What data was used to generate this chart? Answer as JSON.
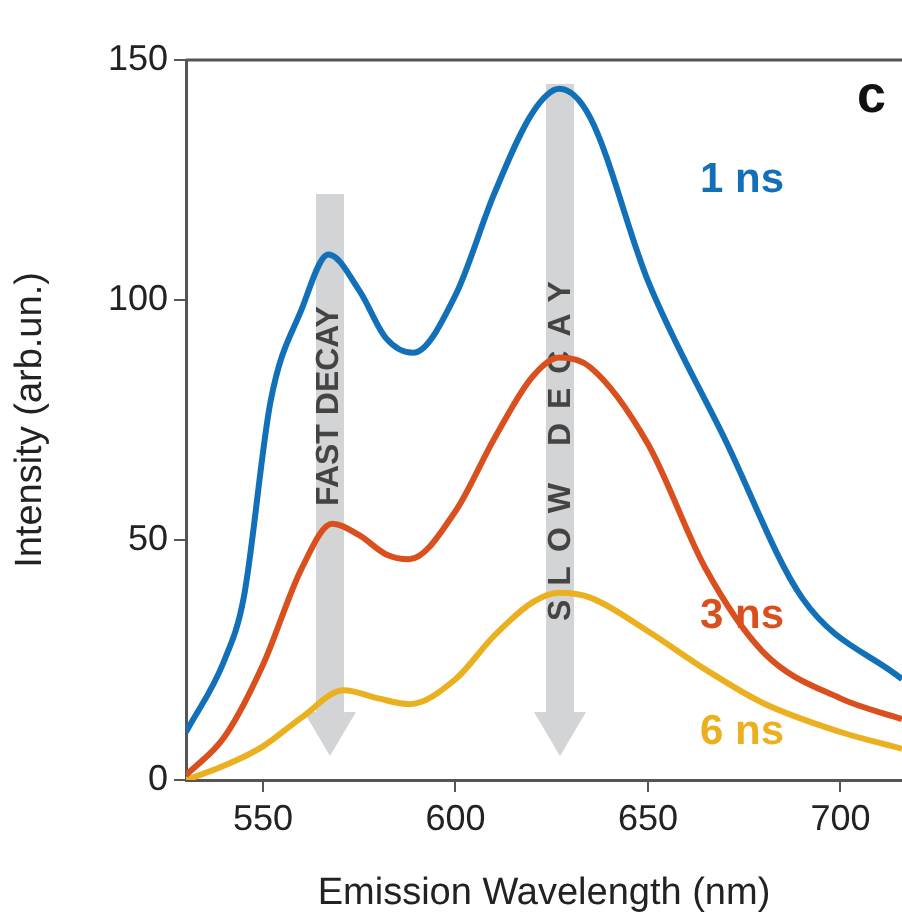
{
  "chart_data": {
    "type": "line",
    "xlabel": "Emission Wavelength (nm)",
    "ylabel": "Intensity (arb.un.)",
    "annotations": [
      "c",
      "FAST DECAY",
      "SLOW DECAY"
    ],
    "xlim": [
      530,
      716
    ],
    "xticks": [
      550,
      600,
      650,
      700
    ],
    "ylim": [
      0,
      150
    ],
    "yticks": [
      0,
      50,
      100,
      150
    ],
    "grid": false,
    "legend": false,
    "marker": "none",
    "line_style": "solid",
    "series": [
      {
        "name": "1 ns",
        "color": "#1270b8",
        "x": [
          530,
          540,
          545,
          552,
          560,
          567,
          575,
          582,
          589,
          600,
          610,
          620,
          627,
          635,
          650,
          670,
          690,
          716
        ],
        "values": [
          10,
          25,
          38,
          79,
          98,
          109.5,
          102,
          92,
          89,
          101,
          122,
          139,
          144,
          138,
          104,
          71,
          38,
          21
        ]
      },
      {
        "name": "3 ns",
        "color": "#d9501e",
        "x": [
          530,
          540,
          550,
          560,
          568,
          575,
          582,
          588,
          600,
          610,
          620,
          627,
          635,
          650,
          665,
          680,
          700,
          716
        ],
        "values": [
          1,
          9,
          24,
          44,
          53.4,
          51,
          47,
          46,
          56,
          71,
          84,
          88,
          86,
          70,
          44,
          26.6,
          17,
          12.7
        ]
      },
      {
        "name": "6 ns",
        "color": "#ebb01f",
        "x": [
          530,
          540,
          550,
          560,
          571,
          580,
          588,
          600,
          610,
          620,
          627,
          635,
          650,
          665,
          680,
          700,
          716
        ],
        "values": [
          0,
          3,
          7,
          13,
          18.7,
          17,
          15.8,
          21,
          30,
          37,
          39,
          38,
          31,
          23,
          16,
          10,
          6.5
        ]
      }
    ]
  }
}
